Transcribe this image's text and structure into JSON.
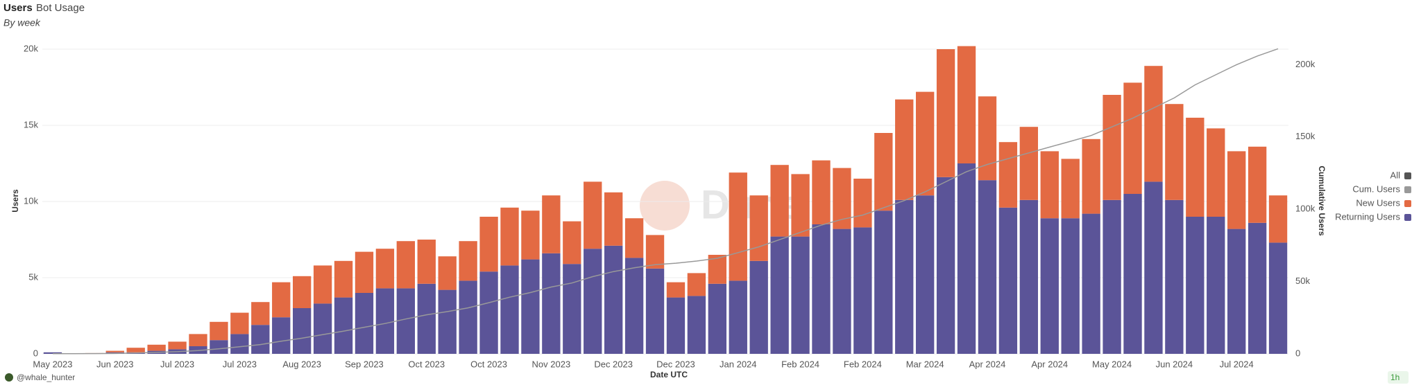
{
  "chart_data": {
    "type": "bar",
    "title": "Users",
    "tab": "Bot Usage",
    "subtitle": "By week",
    "xlabel": "Date UTC",
    "ylabel": "Users",
    "y2label": "Cumulative Users",
    "watermark": "Dune",
    "author": "@whale_hunter",
    "refresh": "1h",
    "legend_all": "All",
    "legend_all_color": "#555555",
    "grid": true,
    "stacked": true,
    "categories": [
      "May 2023",
      null,
      null,
      "Jun 2023",
      null,
      null,
      "Jul 2023",
      null,
      null,
      "Jul 2023",
      null,
      null,
      "Aug 2023",
      null,
      null,
      "Sep 2023",
      null,
      null,
      "Oct 2023",
      null,
      null,
      "Oct 2023",
      null,
      null,
      "Nov 2023",
      null,
      null,
      "Dec 2023",
      null,
      null,
      "Dec 2023",
      null,
      null,
      "Jan 2024",
      null,
      null,
      "Feb 2024",
      null,
      null,
      "Feb 2024",
      null,
      null,
      "Mar 2024",
      null,
      null,
      "Apr 2024",
      null,
      null,
      "Apr 2024",
      null,
      null,
      "May 2024",
      null,
      null,
      "Jun 2024",
      null,
      null,
      "Jul 2024",
      null,
      null
    ],
    "series": [
      {
        "name": "Cum. Users",
        "color": "#999999",
        "kind": "line",
        "axis": "y2",
        "values": [
          100,
          100,
          200,
          300,
          600,
          1000,
          1500,
          2300,
          3500,
          4900,
          6400,
          8700,
          10800,
          13300,
          15700,
          18400,
          21000,
          24100,
          27000,
          29200,
          31800,
          35400,
          39200,
          42400,
          46200,
          49000,
          53400,
          56900,
          59500,
          61700,
          62700,
          64200,
          66100,
          70000,
          74000,
          79000,
          84000,
          89000,
          93000,
          96000,
          101000,
          106000,
          112000,
          119000,
          126000,
          131000,
          135000,
          139000,
          143000,
          147000,
          151000,
          157000,
          163000,
          170000,
          177000,
          186000,
          193000,
          200000,
          206000,
          211000
        ]
      },
      {
        "name": "New Users",
        "color": "#e36a43",
        "kind": "bar",
        "values": [
          0,
          0,
          20,
          100,
          300,
          400,
          500,
          800,
          1200,
          1400,
          1500,
          2300,
          2100,
          2500,
          2400,
          2700,
          2600,
          3100,
          2900,
          2200,
          2600,
          3600,
          3800,
          3200,
          3800,
          2800,
          4400,
          3500,
          2600,
          2200,
          1000,
          1500,
          1900,
          7100,
          4300,
          4700,
          4100,
          4200,
          4000,
          3200,
          5100,
          6600,
          6800,
          8400,
          7700,
          5500,
          4300,
          4800,
          4400,
          3900,
          4900,
          6900,
          7300,
          7600,
          6300,
          6500,
          5800,
          5100,
          5000,
          3100
        ]
      },
      {
        "name": "Returning Users",
        "color": "#5b5498",
        "kind": "bar",
        "values": [
          100,
          20,
          30,
          100,
          100,
          200,
          300,
          500,
          900,
          1300,
          1900,
          2400,
          3000,
          3300,
          3700,
          4000,
          4300,
          4300,
          4600,
          4200,
          4800,
          5400,
          5800,
          6200,
          6600,
          5900,
          6900,
          7100,
          6300,
          5600,
          3700,
          3800,
          4600,
          4800,
          6100,
          7700,
          7700,
          8500,
          8200,
          8300,
          9400,
          10100,
          10400,
          11600,
          12500,
          11400,
          9600,
          10100,
          8900,
          8900,
          9200,
          10100,
          10500,
          11300,
          10100,
          9000,
          9000,
          8200,
          8600,
          7300
        ]
      }
    ],
    "ylim": [
      0,
      20500
    ],
    "yticks": [
      0,
      {
        "value": 5000,
        "label": "5k"
      },
      {
        "value": 10000,
        "label": "10k"
      },
      {
        "value": 15000,
        "label": "15k"
      },
      {
        "value": 20000,
        "label": "20k"
      }
    ],
    "y2lim": [
      0,
      216000
    ],
    "y2ticks": [
      0,
      {
        "value": 50000,
        "label": "50k"
      },
      {
        "value": 100000,
        "label": "100k"
      },
      {
        "value": 150000,
        "label": "150k"
      },
      {
        "value": 200000,
        "label": "200k"
      }
    ]
  }
}
